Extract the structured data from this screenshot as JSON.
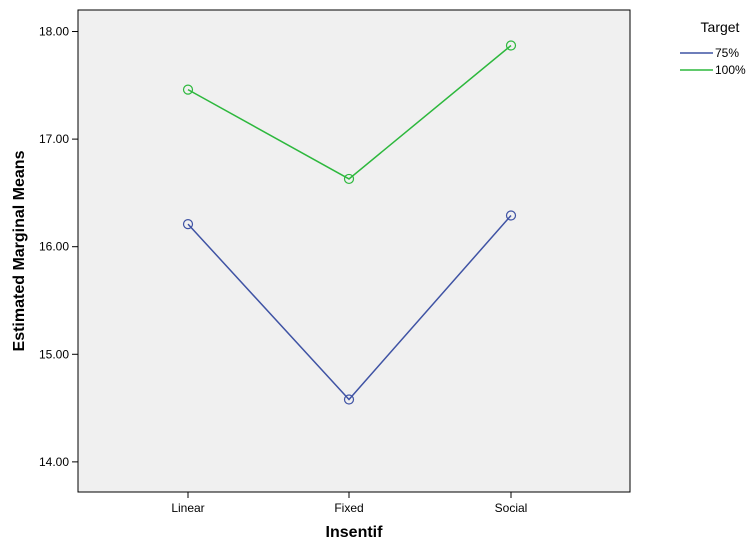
{
  "chart_data": {
    "type": "line",
    "xlabel": "Insentif",
    "ylabel": "Estimated Marginal Means",
    "categories": [
      "Linear",
      "Fixed",
      "Social"
    ],
    "ylim": [
      13.72,
      18.2
    ],
    "yticks": [
      14.0,
      15.0,
      16.0,
      17.0,
      18.0
    ],
    "ytick_labels": [
      "14.00",
      "15.00",
      "16.00",
      "17.00",
      "18.00"
    ],
    "legend": {
      "title": "Target",
      "placement": "top-right, outside plot"
    },
    "series": [
      {
        "name": "75%",
        "color": "#3f53a4",
        "values": [
          16.21,
          14.58,
          16.29
        ]
      },
      {
        "name": "100%",
        "color": "#2db83d",
        "values": [
          17.46,
          16.63,
          17.87
        ]
      }
    ],
    "plot_background": "#f0f0f0",
    "marker": "open-circle",
    "grid": false
  }
}
